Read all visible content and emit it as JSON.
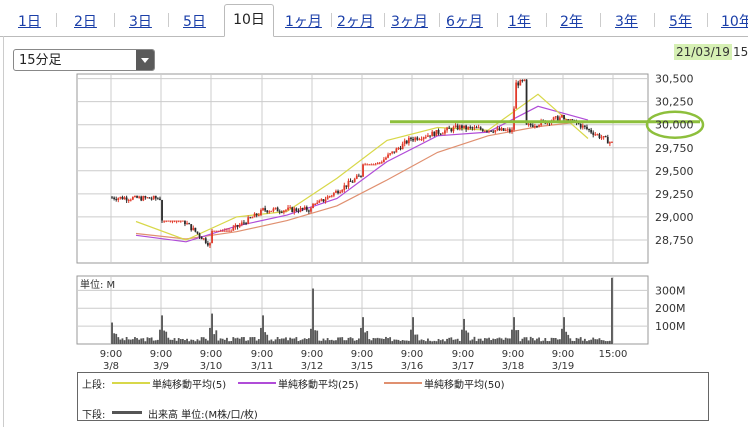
{
  "tabs": [
    {
      "label": "1日",
      "active": false
    },
    {
      "label": "2日",
      "active": false
    },
    {
      "label": "3日",
      "active": false
    },
    {
      "label": "5日",
      "active": false
    },
    {
      "label": "10日",
      "active": true
    },
    {
      "label": "1ヶ月",
      "active": false
    },
    {
      "label": "2ヶ月",
      "active": false
    },
    {
      "label": "3ヶ月",
      "active": false
    },
    {
      "label": "6ヶ月",
      "active": false
    },
    {
      "label": "1年",
      "active": false
    },
    {
      "label": "2年",
      "active": false
    },
    {
      "label": "3年",
      "active": false
    },
    {
      "label": "5年",
      "active": false
    },
    {
      "label": "10年",
      "active": false
    }
  ],
  "interval_select": {
    "value": "15分足"
  },
  "date_label": "21/03/19",
  "date_label_extra": "15",
  "colors": {
    "candle_up": "#e23a2a",
    "candle_down": "#2a2a2a",
    "ma5": "#d8d84a",
    "ma25": "#b04cd8",
    "ma50": "#e09070",
    "volume": "#555555",
    "highlight_line": "#8dbf3c",
    "grid": "#cccccc"
  },
  "chart_data": [
    {
      "type": "candlestick",
      "ylim": [
        28500,
        30550
      ],
      "y_ticks": [
        28750,
        29000,
        29250,
        29500,
        29750,
        30000,
        30250,
        30500
      ],
      "y_tick_labels": [
        "28,750",
        "29,000",
        "29,250",
        "29,500",
        "29,750",
        "30,000",
        "30,250",
        "30,500"
      ],
      "x_labels": [
        {
          "time": "9:00",
          "date": "3/8"
        },
        {
          "time": "9:00",
          "date": "3/9"
        },
        {
          "time": "9:00",
          "date": "3/10"
        },
        {
          "time": "9:00",
          "date": "3/11"
        },
        {
          "time": "9:00",
          "date": "3/12"
        },
        {
          "time": "9:00",
          "date": "3/15"
        },
        {
          "time": "9:00",
          "date": "3/16"
        },
        {
          "time": "9:00",
          "date": "3/17"
        },
        {
          "time": "9:00",
          "date": "3/18"
        },
        {
          "time": "9:00",
          "date": "3/19"
        },
        {
          "time": "15:00",
          "date": ""
        }
      ],
      "day_close_path": [
        29200,
        28700,
        29050,
        29080,
        29450,
        29850,
        29980,
        29930,
        30080,
        29800
      ],
      "day_high": [
        29230,
        28960,
        29100,
        29150,
        29880,
        29900,
        30020,
        30000,
        30500,
        30060
      ],
      "day_low": [
        28900,
        28650,
        28850,
        28980,
        29140,
        29570,
        29800,
        29850,
        29850,
        29620
      ],
      "ma5": [
        28950,
        28750,
        29000,
        29060,
        29420,
        29830,
        29970,
        29940,
        30330,
        29850
      ],
      "ma25": [
        28800,
        28730,
        28900,
        29020,
        29200,
        29600,
        29880,
        29920,
        30200,
        30050
      ],
      "ma50": [
        28820,
        28760,
        28840,
        28960,
        29120,
        29400,
        29700,
        29880,
        29980,
        30040
      ],
      "highlight_value": 30000,
      "highlight_label": "30,000"
    },
    {
      "type": "bar",
      "title": "単位: M",
      "y_tick_labels": [
        "100M",
        "200M",
        "300M"
      ],
      "y_ticks": [
        100,
        200,
        300
      ],
      "ylim": [
        0,
        380
      ],
      "day_open_volume": [
        120,
        160,
        170,
        160,
        310,
        150,
        150,
        140,
        150,
        150
      ],
      "day_close_volume": [
        80,
        90,
        90,
        85,
        90,
        80,
        80,
        80,
        85,
        370
      ]
    }
  ],
  "legend": {
    "top_label": "上段:",
    "ma5_label": "単純移動平均(5)",
    "ma25_label": "単純移動平均(25)",
    "ma50_label": "単純移動平均(50)",
    "bottom_label": "下段:",
    "volume_label": "出来高 単位:(M株/口/枚)"
  }
}
